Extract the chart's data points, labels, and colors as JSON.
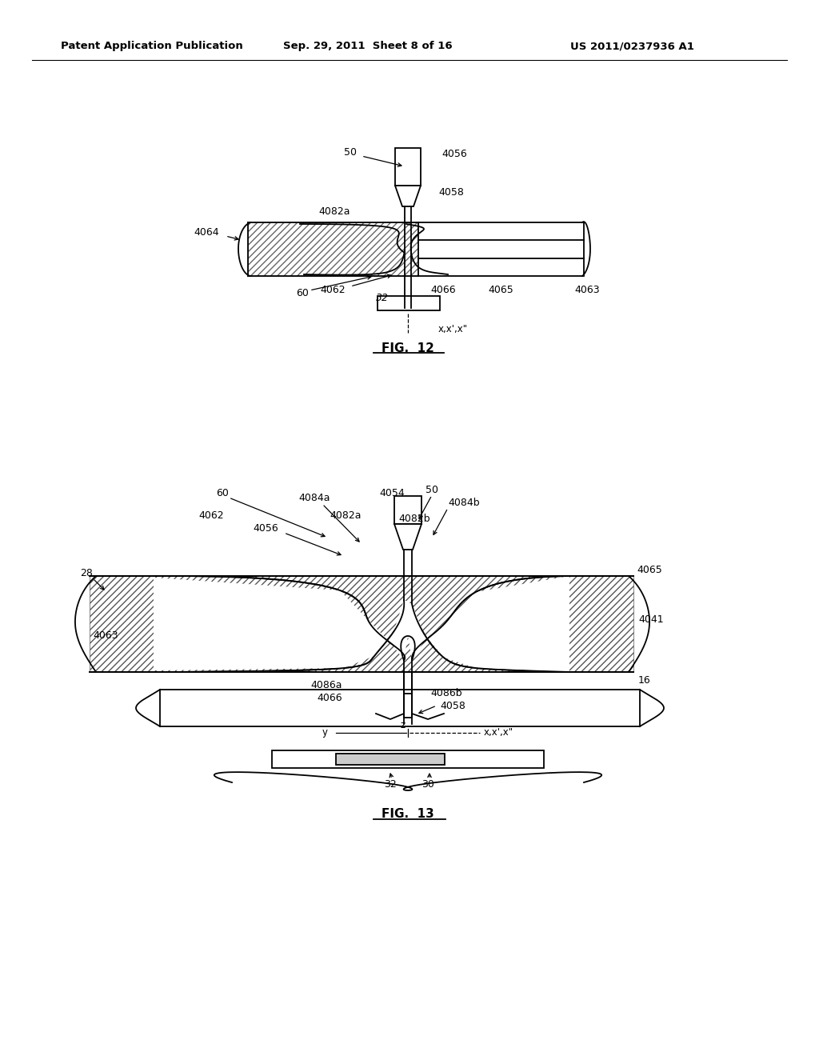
{
  "bg_color": "#ffffff",
  "header_left": "Patent Application Publication",
  "header_mid": "Sep. 29, 2011  Sheet 8 of 16",
  "header_right": "US 2011/0237936 A1",
  "fig12_caption": "FIG.  12",
  "fig13_caption": "FIG.  13",
  "lc": "#000000"
}
